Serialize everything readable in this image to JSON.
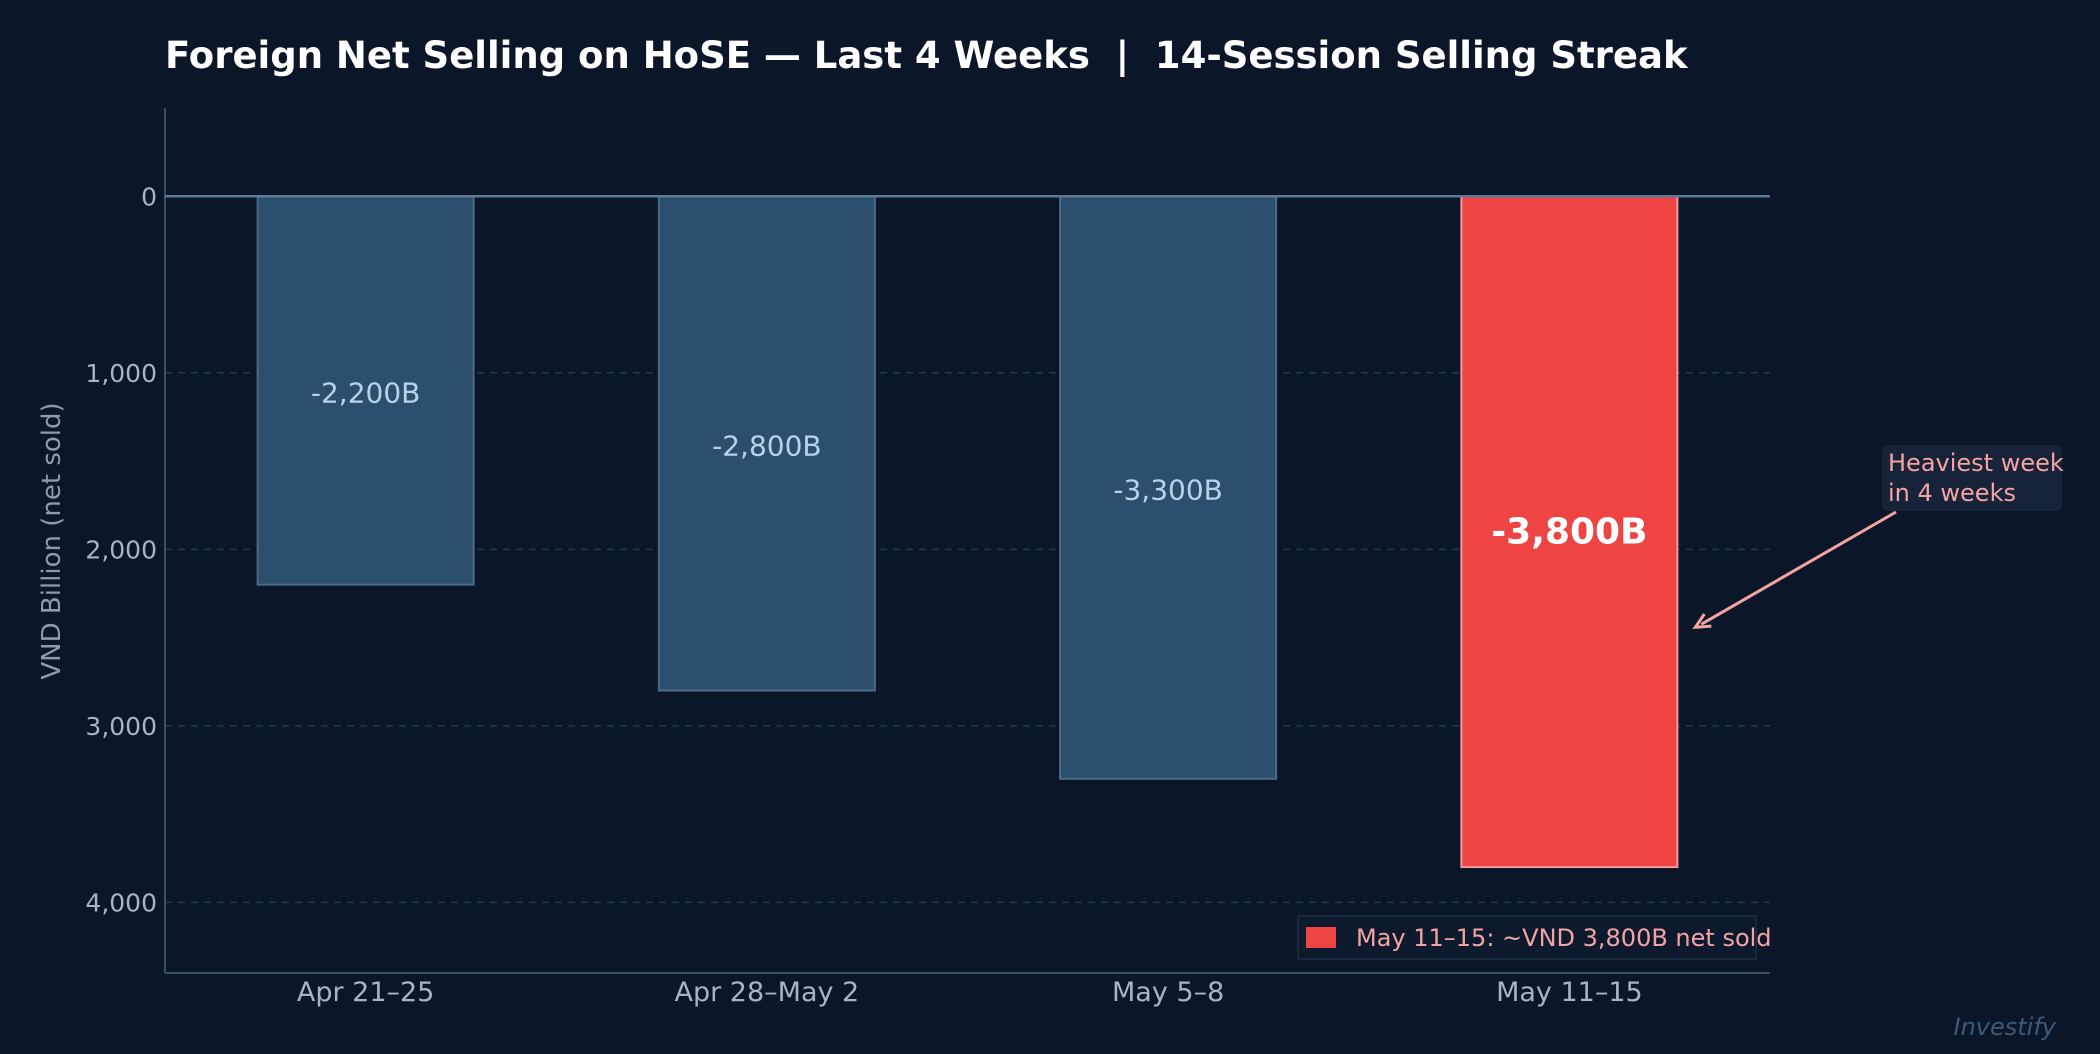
{
  "chart_data": {
    "type": "bar",
    "title": "Foreign Net Selling on HoSE — Last 4 Weeks  |  14-Session Selling Streak",
    "ylabel": "VND Billion (net sold)",
    "xlabel": "",
    "categories": [
      "Apr 21–25",
      "Apr 28–May 2",
      "May 5–8",
      "May 11–15"
    ],
    "values": [
      -2200,
      -2800,
      -3300,
      -3800
    ],
    "data_labels": [
      "-2,200B",
      "-2,800B",
      "-3,300B",
      "-3,800B"
    ],
    "ylim": [
      500,
      -4400
    ],
    "y_ticks": [
      0,
      -1000,
      -2000,
      -3000,
      -4000
    ],
    "y_tick_labels": [
      "0",
      "1,000",
      "2,000",
      "3,000",
      "4,000"
    ],
    "y_axis_inverted_display": true,
    "highlight_index": 3,
    "grid": {
      "y": true,
      "x": false
    },
    "legend": {
      "position": "bottom-right",
      "entries": [
        {
          "label": "May 11–15: ~VND 3,800B net sold",
          "color": "#ef4444"
        }
      ]
    },
    "annotation": {
      "text_lines": [
        "Heaviest week",
        "in 4 weeks"
      ],
      "target_index": 3,
      "target_value": -2260
    },
    "watermark": "Investify",
    "colors": {
      "background": "#0b1628",
      "bar": "#2d4f6e",
      "bar_edge": "#4a6a88",
      "highlight": "#ef4444",
      "highlight_edge": "#f59a9a",
      "zero_line": "#5c7a98",
      "grid": "#1f3a55",
      "axis": "#3a4e64",
      "tick_text": "#a7b4c3",
      "data_label": "#b8d2ea",
      "highlight_label": "#ffffff",
      "title": "#ffffff",
      "annotation_text": "#f4a3a3",
      "annotation_box": "#162338",
      "annotation_arrow": "#f4a3a3",
      "watermark": "#3d5a78"
    }
  }
}
